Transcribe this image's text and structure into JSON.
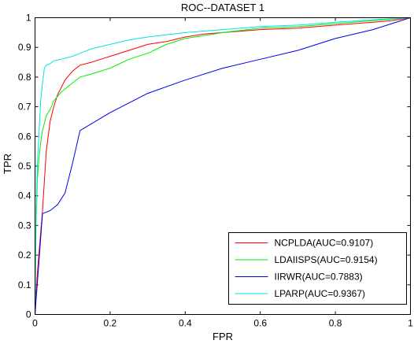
{
  "chart_data": {
    "type": "line",
    "title": "ROC--DATASET 1",
    "xlabel": "FPR",
    "ylabel": "TPR",
    "xlim": [
      0,
      1
    ],
    "ylim": [
      0,
      1
    ],
    "x_ticks": [
      "0",
      "0.2",
      "0.4",
      "0.6",
      "0.8",
      "1"
    ],
    "y_ticks": [
      "0",
      "0.1",
      "0.2",
      "0.3",
      "0.4",
      "0.5",
      "0.6",
      "0.7",
      "0.8",
      "0.9",
      "1"
    ],
    "grid": false,
    "legend_position": "bottom-right",
    "series": [
      {
        "name": "NCPLDA(AUC=0.9107)",
        "color": "#ff0000",
        "x": [
          0,
          0.005,
          0.01,
          0.02,
          0.03,
          0.04,
          0.05,
          0.06,
          0.08,
          0.1,
          0.12,
          0.15,
          0.2,
          0.25,
          0.3,
          0.35,
          0.4,
          0.45,
          0.5,
          0.6,
          0.7,
          0.8,
          0.9,
          0.95,
          1.0
        ],
        "y": [
          0,
          0.12,
          0.2,
          0.35,
          0.55,
          0.65,
          0.7,
          0.74,
          0.79,
          0.82,
          0.84,
          0.85,
          0.87,
          0.89,
          0.91,
          0.92,
          0.935,
          0.945,
          0.95,
          0.96,
          0.965,
          0.975,
          0.985,
          0.99,
          1.0
        ]
      },
      {
        "name": "LDAIISPS(AUC=0.9154)",
        "color": "#00ee00",
        "x": [
          0,
          0.003,
          0.006,
          0.01,
          0.015,
          0.02,
          0.03,
          0.04,
          0.05,
          0.07,
          0.1,
          0.12,
          0.15,
          0.2,
          0.25,
          0.3,
          0.35,
          0.4,
          0.5,
          0.6,
          0.7,
          0.8,
          0.9,
          1.0
        ],
        "y": [
          0,
          0.3,
          0.45,
          0.52,
          0.58,
          0.62,
          0.67,
          0.69,
          0.72,
          0.75,
          0.78,
          0.8,
          0.81,
          0.83,
          0.86,
          0.88,
          0.91,
          0.93,
          0.95,
          0.965,
          0.97,
          0.98,
          0.99,
          1.0
        ]
      },
      {
        "name": "IIRWR(AUC=0.7883)",
        "color": "#0000ee",
        "x": [
          0,
          0.02,
          0.04,
          0.06,
          0.07,
          0.08,
          0.1,
          0.12,
          0.2,
          0.3,
          0.4,
          0.5,
          0.6,
          0.7,
          0.8,
          0.9,
          1.0
        ],
        "y": [
          0,
          0.34,
          0.35,
          0.37,
          0.39,
          0.41,
          0.51,
          0.62,
          0.68,
          0.745,
          0.79,
          0.83,
          0.86,
          0.89,
          0.93,
          0.96,
          1.0
        ]
      },
      {
        "name": "LPARP(AUC=0.9367)",
        "color": "#00e5e5",
        "x": [
          0,
          0.003,
          0.006,
          0.01,
          0.015,
          0.02,
          0.025,
          0.03,
          0.04,
          0.05,
          0.07,
          0.1,
          0.12,
          0.15,
          0.2,
          0.25,
          0.3,
          0.4,
          0.5,
          0.6,
          0.7,
          0.8,
          0.9,
          1.0
        ],
        "y": [
          0,
          0.35,
          0.5,
          0.6,
          0.72,
          0.78,
          0.83,
          0.84,
          0.845,
          0.855,
          0.86,
          0.87,
          0.88,
          0.895,
          0.91,
          0.925,
          0.935,
          0.95,
          0.96,
          0.97,
          0.975,
          0.985,
          0.993,
          1.0
        ]
      }
    ]
  }
}
